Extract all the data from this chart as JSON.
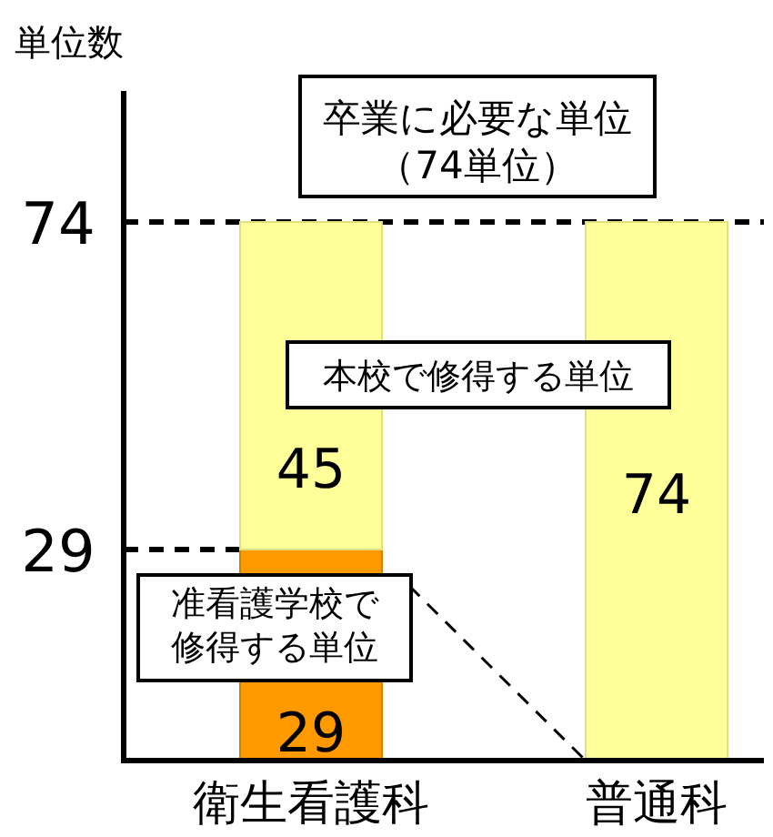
{
  "chart_data": {
    "type": "bar",
    "stacked": true,
    "ylabel": "単位数",
    "categories": [
      "衛生看護科",
      "普通科"
    ],
    "series": [
      {
        "name": "准看護学校で修得する単位",
        "color": "#ff9900",
        "values": [
          29,
          null
        ],
        "value_labels": [
          "29",
          null
        ]
      },
      {
        "name": "本校で修得する単位",
        "color": "#ffff99",
        "values": [
          45,
          74
        ],
        "value_labels": [
          "45",
          "74"
        ]
      }
    ],
    "ylim": [
      0,
      92
    ],
    "yticks": [
      29,
      74
    ],
    "legend": false,
    "ref_lines": [
      {
        "axis": "y",
        "value": 74,
        "label": "卒業に必要な単位（74単位）",
        "line_style": "dashed"
      },
      {
        "axis": "y",
        "value": 29,
        "line_style": "dashed"
      }
    ]
  }
}
